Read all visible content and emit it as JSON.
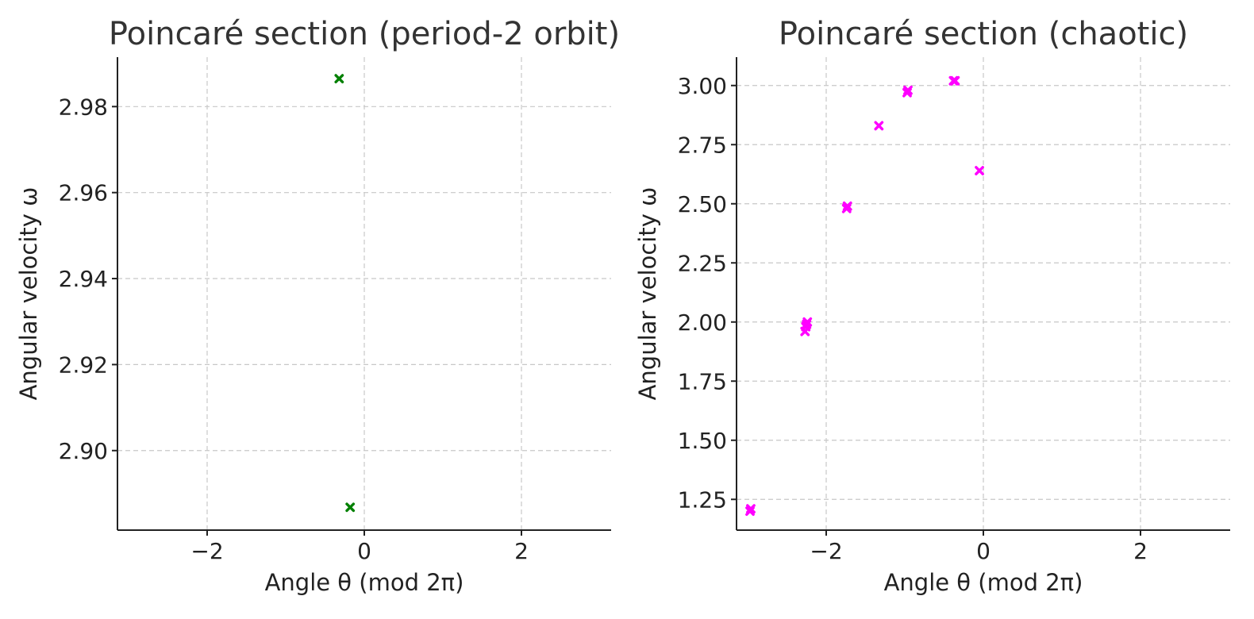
{
  "chart_data": [
    {
      "type": "scatter",
      "title": "Poincaré section (period-2 orbit)",
      "xlabel": "Angle θ (mod 2π)",
      "ylabel": "Angular velocity ω",
      "xlim": [
        -3.14159,
        3.14159
      ],
      "ylim": [
        2.8815,
        2.9915
      ],
      "xticks": [
        -2,
        0,
        2
      ],
      "xtick_labels": [
        "−2",
        "0",
        "2"
      ],
      "yticks": [
        2.9,
        2.92,
        2.94,
        2.96,
        2.98
      ],
      "ytick_labels": [
        "2.90",
        "2.92",
        "2.94",
        "2.96",
        "2.98"
      ],
      "grid": true,
      "marker": "x-filled",
      "color": "#008000",
      "series": [
        {
          "x": [
            -0.32,
            -0.18
          ],
          "y": [
            2.9865,
            2.8868
          ]
        }
      ]
    },
    {
      "type": "scatter",
      "title": "Poincaré section (chaotic)",
      "xlabel": "Angle θ (mod 2π)",
      "ylabel": "Angular velocity ω",
      "xlim": [
        -3.14159,
        3.14159
      ],
      "ylim": [
        1.12,
        3.12
      ],
      "xticks": [
        -2,
        0,
        2
      ],
      "xtick_labels": [
        "−2",
        "0",
        "2"
      ],
      "yticks": [
        1.25,
        1.5,
        1.75,
        2.0,
        2.25,
        2.5,
        2.75,
        3.0
      ],
      "ytick_labels": [
        "1.25",
        "1.50",
        "1.75",
        "2.00",
        "2.25",
        "2.50",
        "2.75",
        "3.00"
      ],
      "grid": true,
      "marker": "x-filled",
      "color": "#ff00ff",
      "series": [
        {
          "x": [
            -2.97,
            -2.96,
            -2.27,
            -2.26,
            -2.25,
            -2.24,
            -1.74,
            -1.73,
            -1.33,
            -0.97,
            -0.96,
            -0.38,
            -0.36,
            -0.05
          ],
          "y": [
            1.2,
            1.21,
            1.96,
            1.98,
            1.99,
            2.0,
            2.48,
            2.49,
            2.83,
            2.97,
            2.98,
            3.02,
            3.02,
            2.64
          ]
        }
      ]
    }
  ]
}
